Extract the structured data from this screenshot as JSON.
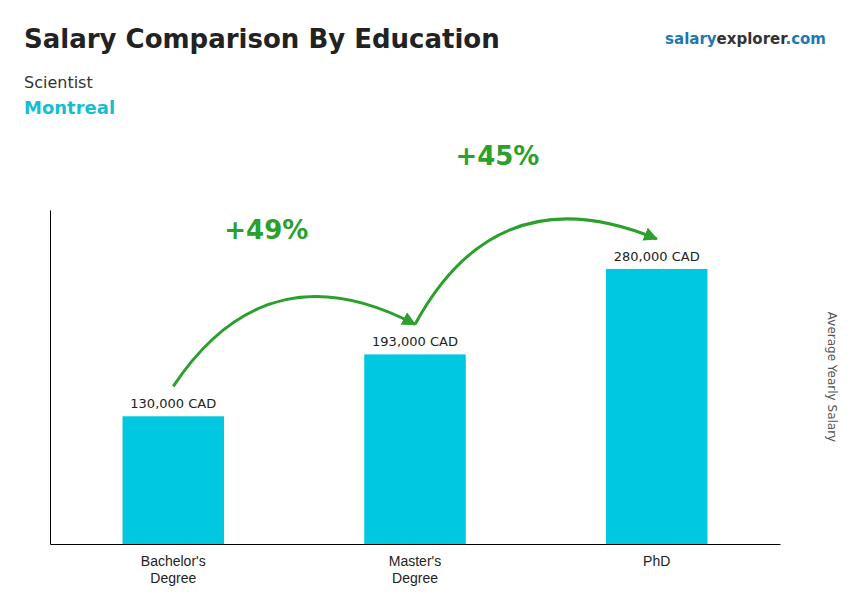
{
  "chart_data": {
    "type": "bar",
    "title": "Salary Comparison By Education",
    "subtitle": [
      "Scientist",
      "Montreal"
    ],
    "watermark": [
      "salary",
      "explorer",
      ".com"
    ],
    "ylabel": "Average Yearly Salary",
    "categories": [
      "Bachelor's\nDegree",
      "Master's\nDegree",
      "PhD"
    ],
    "values": [
      130000,
      193000,
      280000
    ],
    "value_labels": [
      "130,000 CAD",
      "193,000 CAD",
      "280,000 CAD"
    ],
    "data_labels": true,
    "annotations": [
      "+49%",
      "+45%"
    ],
    "color": "#00c8e0",
    "ylim": [
      0,
      340000
    ],
    "tick_labels": "x"
  }
}
